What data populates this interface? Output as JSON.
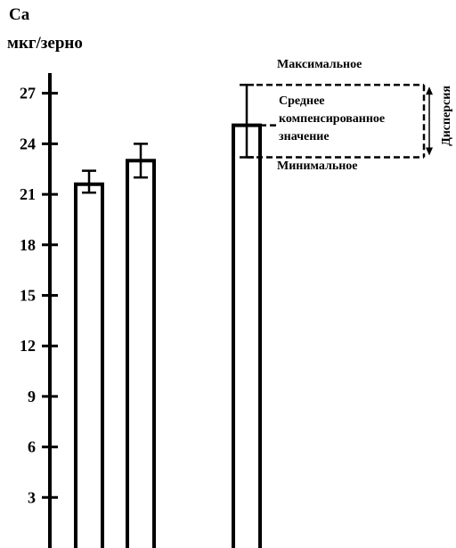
{
  "chart_data": {
    "type": "bar",
    "ylabel_line1": "Ca",
    "ylabel_line2": "мкг/зерно",
    "yticks": [
      3,
      6,
      9,
      12,
      15,
      18,
      21,
      24,
      27
    ],
    "ylim": [
      0,
      28.2
    ],
    "grid": false,
    "categories": [
      "",
      "",
      ""
    ],
    "values": [
      21.6,
      23.0,
      25.1
    ],
    "error_low": [
      21.1,
      22.0,
      23.2
    ],
    "error_high": [
      22.4,
      24.0,
      27.5
    ],
    "annotation": {
      "max_label": "Максимальное",
      "mean_label_lines": [
        "Среднее",
        "компенсированное",
        "значение"
      ],
      "min_label": "Минимальное",
      "dispersion_label": "Дисперсия"
    }
  }
}
